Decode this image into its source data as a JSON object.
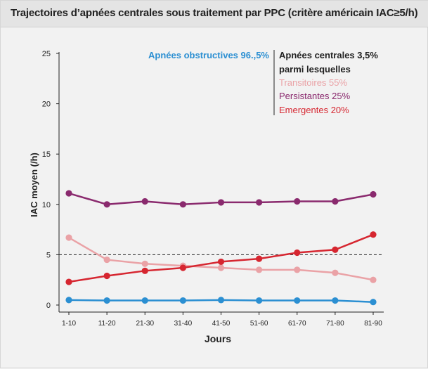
{
  "chart_data": {
    "type": "line",
    "title": "Trajectoires d’apnées centrales sous traitement par PPC (critère américain IAC≥5/h)",
    "xlabel": "Jours",
    "ylabel": "IAC moyen (/h)",
    "categories": [
      "1-10",
      "11-20",
      "21-30",
      "31-40",
      "41-50",
      "51-60",
      "61-70",
      "71-80",
      "81-90"
    ],
    "ylim": [
      0,
      25
    ],
    "yticks": [
      "0",
      "5",
      "10",
      "15",
      "20",
      "25"
    ],
    "threshold": 5,
    "grid": false,
    "series": [
      {
        "name": "Persistantes 25%",
        "color": "#8a2a6e",
        "values": [
          11.1,
          10.0,
          10.3,
          10.0,
          10.2,
          10.2,
          10.3,
          10.3,
          11.0
        ]
      },
      {
        "name": "Transitoires 55%",
        "color": "#eaa2a6",
        "values": [
          6.7,
          4.5,
          4.1,
          3.9,
          3.7,
          3.5,
          3.5,
          3.2,
          2.5
        ]
      },
      {
        "name": "Emergentes 20%",
        "color": "#d62630",
        "values": [
          2.3,
          2.9,
          3.4,
          3.7,
          4.3,
          4.6,
          5.2,
          5.5,
          7.0
        ]
      },
      {
        "name": "Apnées obstructives 96.,5%",
        "color": "#2b8fd2",
        "values": [
          0.5,
          0.45,
          0.45,
          0.45,
          0.5,
          0.45,
          0.45,
          0.45,
          0.3
        ]
      }
    ],
    "legend": {
      "position": "top",
      "obstructive": "Apnées obstructives 96.,5%",
      "central_heading_1": "Apnées centrales 3,5%",
      "central_heading_2": "parmi lesquelles",
      "transitoires": "Transitoires 55%",
      "persistantes": "Persistantes 25%",
      "emergentes": "Emergentes 20%"
    }
  }
}
